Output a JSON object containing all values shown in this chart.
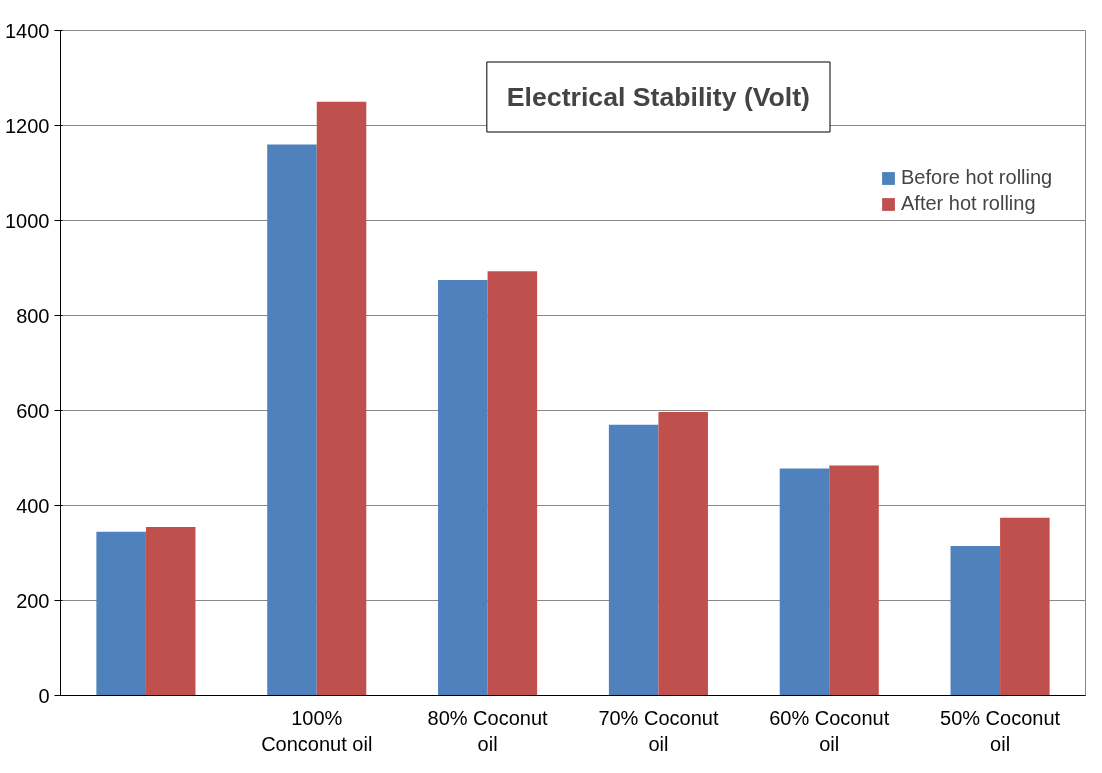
{
  "chart_data": {
    "type": "bar",
    "title": "Electrical Stability (Volt)",
    "categories": [
      null,
      "100%\nConconut oil",
      "80% Coconut\noil",
      "70% Coconut\noil",
      "60% Coconut\noil",
      "50% Coconut\noil"
    ],
    "series": [
      {
        "name": "Before hot rolling",
        "color": "#4f81bd",
        "values": [
          345,
          1160,
          875,
          570,
          478,
          315
        ]
      },
      {
        "name": "After hot rolling",
        "color": "#c0504d",
        "values": [
          355,
          1250,
          893,
          597,
          484,
          374
        ]
      }
    ],
    "ylim": [
      0,
      1400
    ],
    "yticks": [
      0,
      200,
      400,
      600,
      800,
      1000,
      1200,
      1400
    ],
    "grid": "y",
    "legend": "top right"
  }
}
